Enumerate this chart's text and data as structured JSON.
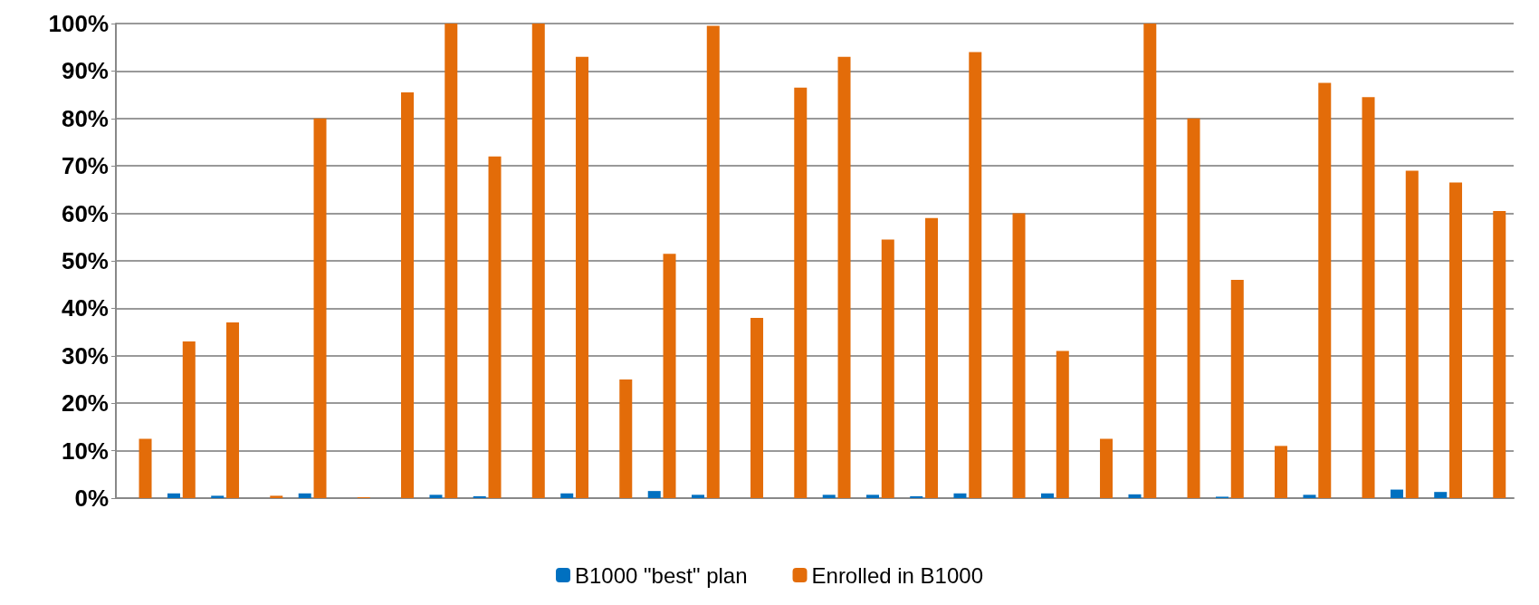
{
  "chart_data": {
    "type": "bar",
    "categories": [
      null,
      null,
      null,
      null,
      null,
      null,
      null,
      null,
      null,
      null,
      null,
      null,
      null,
      null,
      null,
      null,
      null,
      null,
      null,
      null,
      null,
      null,
      null,
      null,
      null,
      null,
      null,
      null,
      null,
      null,
      null,
      null
    ],
    "series": [
      {
        "name": "B1000 \"best\" plan",
        "color": "#0070c0",
        "values": [
          0,
          1,
          0.5,
          0,
          1,
          0,
          0,
          0.7,
          0.4,
          0,
          1,
          0,
          1.5,
          0.7,
          0,
          0,
          0.7,
          0.7,
          0.4,
          1,
          0,
          1,
          0,
          0.8,
          0,
          0.3,
          0,
          0.7,
          0,
          1.8,
          1.3,
          0
        ]
      },
      {
        "name": "Enrolled in B1000",
        "color": "#e36c09",
        "values": [
          12.5,
          33,
          37,
          0.5,
          80,
          0.2,
          85.5,
          100,
          72,
          100,
          93,
          25,
          51.5,
          99.5,
          38,
          86.5,
          93,
          54.5,
          59,
          94,
          60,
          31,
          12.5,
          100,
          80,
          46,
          11,
          87.5,
          84.5,
          69,
          66.5,
          60.5
        ]
      }
    ],
    "ylim": [
      0,
      100
    ],
    "yticks": [
      {
        "value": 0,
        "label": "0%"
      },
      {
        "value": 10,
        "label": "10%"
      },
      {
        "value": 20,
        "label": "20%"
      },
      {
        "value": 30,
        "label": "30%"
      },
      {
        "value": 40,
        "label": "40%"
      },
      {
        "value": 50,
        "label": "50%"
      },
      {
        "value": 60,
        "label": "60%"
      },
      {
        "value": 70,
        "label": "70%"
      },
      {
        "value": 80,
        "label": "80%"
      },
      {
        "value": 90,
        "label": "90%"
      },
      {
        "value": 100,
        "label": "100%"
      }
    ],
    "grid": "y",
    "legend": "bottom"
  }
}
